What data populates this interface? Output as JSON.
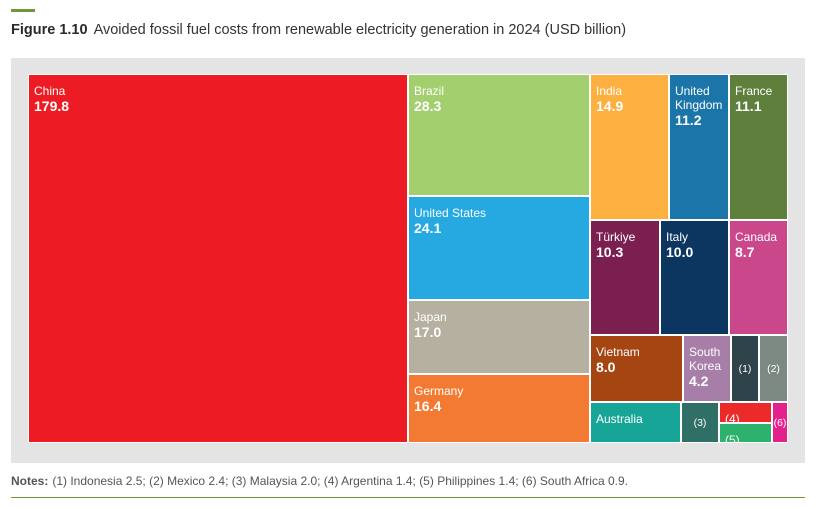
{
  "figure": {
    "number": "Figure 1.10",
    "title": "Avoided fossil fuel costs from renewable electricity generation in 2024 (USD billion)"
  },
  "notes": {
    "label": "Notes:",
    "text": "(1) Indonesia 2.5; (2) Mexico 2.4; (3) Malaysia 2.0; (4) Argentina 1.4; (5) Philippines 1.4; (6) South Africa 0.9."
  },
  "chart_data": {
    "type": "treemap",
    "title": "Avoided fossil fuel costs from renewable electricity generation in 2024 (USD billion)",
    "unit": "USD billion",
    "items": [
      {
        "label": "China",
        "value": 179.8,
        "value_text": "179.8",
        "color": "#ed1c24"
      },
      {
        "label": "Brazil",
        "value": 28.3,
        "value_text": "28.3",
        "color": "#a3cf6e"
      },
      {
        "label": "United States",
        "value": 24.1,
        "value_text": "24.1",
        "color": "#26a9e0"
      },
      {
        "label": "Japan",
        "value": 17.0,
        "value_text": "17.0",
        "color": "#b5b09f"
      },
      {
        "label": "Germany",
        "value": 16.4,
        "value_text": "16.4",
        "color": "#f37a32"
      },
      {
        "label": "India",
        "value": 14.9,
        "value_text": "14.9",
        "color": "#fbb040"
      },
      {
        "label": "United Kingdom",
        "value": 11.2,
        "value_text": "11.2",
        "color": "#1b75a8"
      },
      {
        "label": "France",
        "value": 11.1,
        "value_text": "11.1",
        "color": "#5f7f3c"
      },
      {
        "label": "Türkiye",
        "value": 10.3,
        "value_text": "10.3",
        "color": "#7a1f4f"
      },
      {
        "label": "Italy",
        "value": 10.0,
        "value_text": "10.0",
        "color": "#0c3560"
      },
      {
        "label": "Canada",
        "value": 8.7,
        "value_text": "8.7",
        "color": "#c9478a"
      },
      {
        "label": "Vietnam",
        "value": 8.0,
        "value_text": "8.0",
        "color": "#a44512"
      },
      {
        "label": "South Korea",
        "value": 4.2,
        "value_text": "4.2",
        "color": "#a77ea8"
      },
      {
        "label": "Australia",
        "value": 3.6,
        "value_text": "",
        "color": "#16a596"
      },
      {
        "label": "(1)",
        "value": 2.5,
        "value_text": "",
        "color": "#2f434a"
      },
      {
        "label": "(2)",
        "value": 2.4,
        "value_text": "",
        "color": "#7c8982"
      },
      {
        "label": "(3)",
        "value": 2.0,
        "value_text": "",
        "color": "#2f6f66"
      },
      {
        "label": "(4)",
        "value": 1.4,
        "value_text": "",
        "color": "#ed2a2a"
      },
      {
        "label": "(5)",
        "value": 1.4,
        "value_text": "",
        "color": "#2cb26c"
      },
      {
        "label": "(6)",
        "value": 0.9,
        "value_text": "",
        "color": "#e4208b"
      }
    ]
  }
}
